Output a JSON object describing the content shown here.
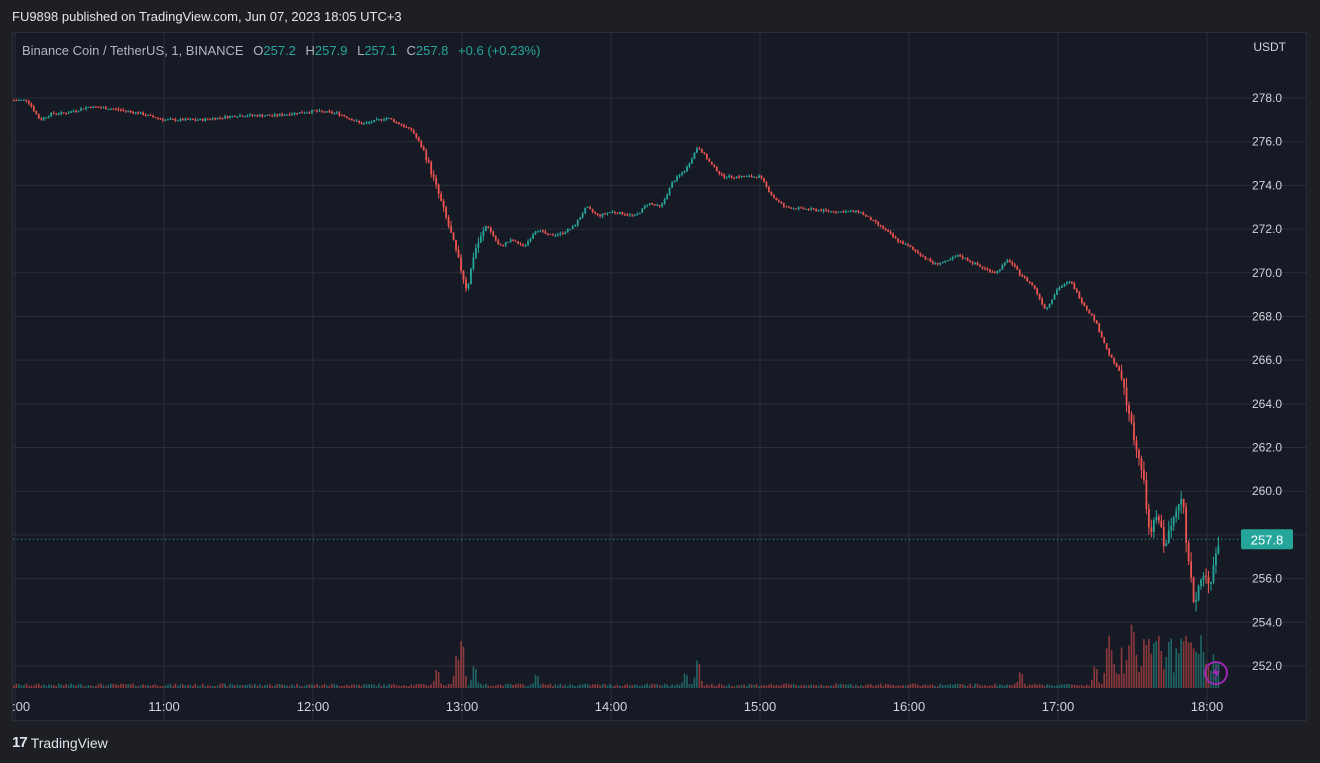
{
  "header": {
    "publish_line": "FU9898 published on TradingView.com, Jun 07, 2023 18:05 UTC+3"
  },
  "legend": {
    "symbol": "Binance Coin / TetherUS, 1, BINANCE",
    "open_label": "O",
    "open": "257.2",
    "high_label": "H",
    "high": "257.9",
    "low_label": "L",
    "low": "257.1",
    "close_label": "C",
    "close": "257.8",
    "change": "+0.6 (+0.23%)"
  },
  "price_axis": {
    "currency": "USDT"
  },
  "last_price_label": "257.8",
  "footer": {
    "brand": "TradingView",
    "logo_icon": "tradingview-logo-icon"
  },
  "colors": {
    "up": "#26a69a",
    "down": "#ef5350",
    "background": "#161a25",
    "grid": "#2a2e39"
  },
  "lightning_icon": "lightning-icon",
  "chart_data": {
    "type": "candlestick",
    "interval": "1",
    "ylim": [
      250.5,
      280.5
    ],
    "y_ticks": [
      "278.0",
      "276.0",
      "274.0",
      "272.0",
      "270.0",
      "268.0",
      "266.0",
      "264.0",
      "262.0",
      "260.0",
      "258.0",
      "256.0",
      "254.0",
      "252.0"
    ],
    "x_ticks": [
      ":00",
      "11:00",
      "12:00",
      "13:00",
      "14:00",
      "15:00",
      "16:00",
      "17:00",
      "18:00"
    ],
    "last_price": 257.8,
    "price_path": [
      [
        "10:00",
        277.9
      ],
      [
        "10:05",
        277.9
      ],
      [
        "10:10",
        277.0
      ],
      [
        "10:15",
        277.3
      ],
      [
        "10:20",
        277.3
      ],
      [
        "10:30",
        277.6
      ],
      [
        "10:40",
        277.5
      ],
      [
        "10:50",
        277.3
      ],
      [
        "11:00",
        277.0
      ],
      [
        "11:15",
        277.0
      ],
      [
        "11:30",
        277.2
      ],
      [
        "11:45",
        277.2
      ],
      [
        "12:00",
        277.4
      ],
      [
        "12:10",
        277.3
      ],
      [
        "12:20",
        276.8
      ],
      [
        "12:30",
        277.1
      ],
      [
        "12:40",
        276.5
      ],
      [
        "12:45",
        275.5
      ],
      [
        "12:50",
        273.8
      ],
      [
        "12:55",
        272.0
      ],
      [
        "13:00",
        270.0
      ],
      [
        "13:02",
        269.2
      ],
      [
        "13:05",
        271.0
      ],
      [
        "13:10",
        272.2
      ],
      [
        "13:15",
        271.2
      ],
      [
        "13:20",
        271.5
      ],
      [
        "13:25",
        271.2
      ],
      [
        "13:30",
        272.0
      ],
      [
        "13:35",
        271.7
      ],
      [
        "13:40",
        271.8
      ],
      [
        "13:45",
        272.1
      ],
      [
        "13:50",
        273.0
      ],
      [
        "13:55",
        272.6
      ],
      [
        "14:00",
        272.8
      ],
      [
        "14:10",
        272.6
      ],
      [
        "14:15",
        273.2
      ],
      [
        "14:20",
        273.0
      ],
      [
        "14:25",
        274.2
      ],
      [
        "14:30",
        274.7
      ],
      [
        "14:35",
        275.8
      ],
      [
        "14:40",
        275.0
      ],
      [
        "14:45",
        274.4
      ],
      [
        "14:50",
        274.4
      ],
      [
        "15:00",
        274.4
      ],
      [
        "15:05",
        273.5
      ],
      [
        "15:10",
        273.0
      ],
      [
        "15:20",
        272.9
      ],
      [
        "15:30",
        272.8
      ],
      [
        "15:40",
        272.8
      ],
      [
        "15:45",
        272.4
      ],
      [
        "15:50",
        272.0
      ],
      [
        "15:55",
        271.5
      ],
      [
        "16:00",
        271.2
      ],
      [
        "16:05",
        270.8
      ],
      [
        "16:10",
        270.4
      ],
      [
        "16:15",
        270.5
      ],
      [
        "16:20",
        270.8
      ],
      [
        "16:25",
        270.5
      ],
      [
        "16:30",
        270.2
      ],
      [
        "16:35",
        270.0
      ],
      [
        "16:40",
        270.6
      ],
      [
        "16:45",
        269.9
      ],
      [
        "16:50",
        269.4
      ],
      [
        "16:55",
        268.3
      ],
      [
        "17:00",
        269.3
      ],
      [
        "17:05",
        269.6
      ],
      [
        "17:10",
        268.6
      ],
      [
        "17:15",
        267.8
      ],
      [
        "17:20",
        266.4
      ],
      [
        "17:25",
        265.4
      ],
      [
        "17:30",
        262.8
      ],
      [
        "17:33",
        261.3
      ],
      [
        "17:35",
        260.0
      ],
      [
        "17:37",
        257.8
      ],
      [
        "17:40",
        259.0
      ],
      [
        "17:43",
        257.5
      ],
      [
        "17:46",
        258.5
      ],
      [
        "17:48",
        259.5
      ],
      [
        "17:50",
        260.0
      ],
      [
        "17:52",
        257.0
      ],
      [
        "17:55",
        254.8
      ],
      [
        "17:58",
        256.4
      ],
      [
        "18:00",
        255.8
      ],
      [
        "18:02",
        256.2
      ],
      [
        "18:04",
        257.2
      ],
      [
        "18:05",
        257.8
      ]
    ],
    "volume_spikes": [
      [
        "12:50",
        0.25
      ],
      [
        "12:58",
        0.45
      ],
      [
        "13:00",
        0.65
      ],
      [
        "13:05",
        0.3
      ],
      [
        "13:30",
        0.18
      ],
      [
        "14:30",
        0.2
      ],
      [
        "14:35",
        0.38
      ],
      [
        "16:45",
        0.22
      ],
      [
        "17:15",
        0.3
      ],
      [
        "17:20",
        0.55
      ],
      [
        "17:30",
        0.88
      ],
      [
        "17:35",
        0.68
      ],
      [
        "17:40",
        0.6
      ],
      [
        "17:48",
        0.55
      ],
      [
        "17:52",
        0.72
      ],
      [
        "17:55",
        0.55
      ],
      [
        "18:00",
        0.34
      ],
      [
        "18:04",
        0.24
      ]
    ]
  }
}
